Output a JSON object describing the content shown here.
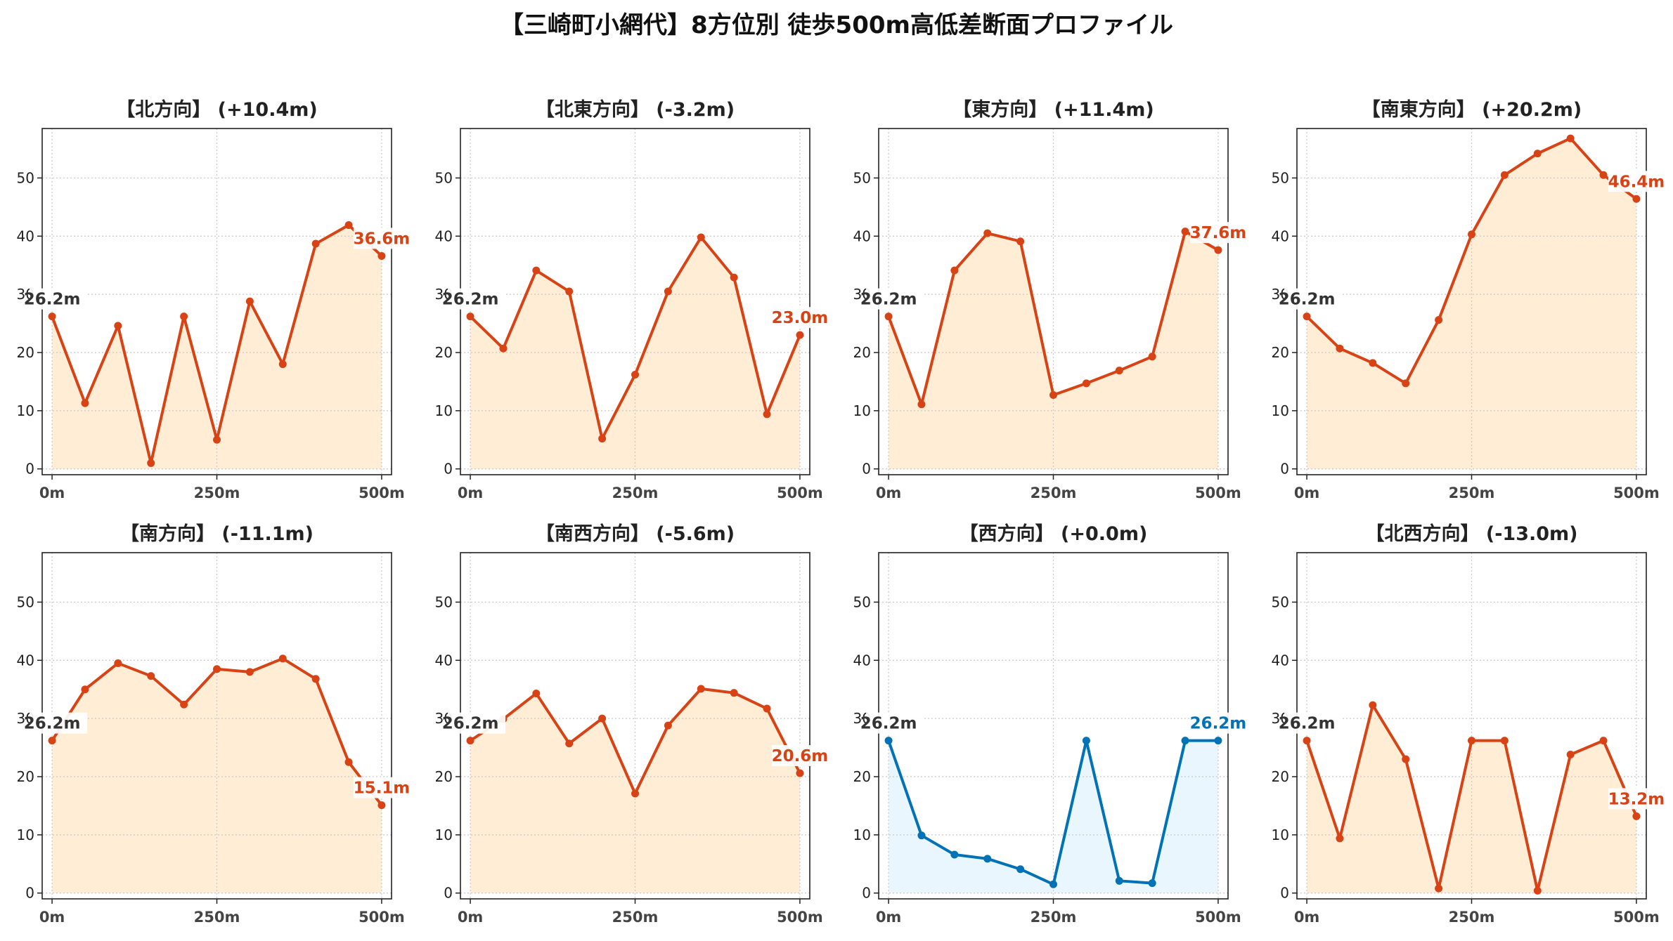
{
  "title": "【三崎町小網代】8方位別 徒歩500m高低差断面プロファイル",
  "colors": {
    "up_line": "#d84315",
    "up_fill": "#ffedd5",
    "flat_line": "#0072b5",
    "flat_fill": "#eaf6fd",
    "start_label": "#333333"
  },
  "chart_data": [
    {
      "type": "line",
      "title": "【北方向】 (+10.4m)",
      "style": "up",
      "x": [
        0,
        50,
        100,
        150,
        200,
        250,
        300,
        350,
        400,
        450,
        500
      ],
      "values": [
        26.2,
        11.3,
        24.6,
        1.0,
        26.2,
        5.0,
        28.8,
        18.0,
        38.7,
        41.9,
        36.6
      ],
      "start_label": "26.2m",
      "end_label": "36.6m",
      "x_ticks": [
        "0m",
        "250m",
        "500m"
      ],
      "y_ticks": [
        "0",
        "10",
        "20",
        "30",
        "40",
        "50"
      ],
      "ylim": [
        -1,
        58.5
      ],
      "xlim": [
        -15,
        515
      ],
      "grid": true
    },
    {
      "type": "line",
      "title": "【北東方向】 (-3.2m)",
      "style": "up",
      "x": [
        0,
        50,
        100,
        150,
        200,
        250,
        300,
        350,
        400,
        450,
        500
      ],
      "values": [
        26.2,
        20.7,
        34.1,
        30.5,
        5.2,
        16.2,
        30.5,
        39.8,
        32.9,
        9.4,
        23.0
      ],
      "start_label": "26.2m",
      "end_label": "23.0m",
      "x_ticks": [
        "0m",
        "250m",
        "500m"
      ],
      "y_ticks": [
        "0",
        "10",
        "20",
        "30",
        "40",
        "50"
      ],
      "ylim": [
        -1,
        58.5
      ],
      "xlim": [
        -15,
        515
      ],
      "grid": true
    },
    {
      "type": "line",
      "title": "【東方向】 (+11.4m)",
      "style": "up",
      "x": [
        0,
        50,
        100,
        150,
        200,
        250,
        300,
        350,
        400,
        450,
        500
      ],
      "values": [
        26.2,
        11.1,
        34.1,
        40.5,
        39.1,
        12.7,
        14.7,
        16.9,
        19.3,
        40.8,
        37.6
      ],
      "start_label": "26.2m",
      "end_label": "37.6m",
      "x_ticks": [
        "0m",
        "250m",
        "500m"
      ],
      "y_ticks": [
        "0",
        "10",
        "20",
        "30",
        "40",
        "50"
      ],
      "ylim": [
        -1,
        58.5
      ],
      "xlim": [
        -15,
        515
      ],
      "grid": true
    },
    {
      "type": "line",
      "title": "【南東方向】 (+20.2m)",
      "style": "up",
      "x": [
        0,
        50,
        100,
        150,
        200,
        250,
        300,
        350,
        400,
        450,
        500
      ],
      "values": [
        26.2,
        20.7,
        18.2,
        14.7,
        25.6,
        40.3,
        50.5,
        54.2,
        56.8,
        50.5,
        46.4
      ],
      "start_label": "26.2m",
      "end_label": "46.4m",
      "x_ticks": [
        "0m",
        "250m",
        "500m"
      ],
      "y_ticks": [
        "0",
        "10",
        "20",
        "30",
        "40",
        "50"
      ],
      "ylim": [
        -1,
        58.5
      ],
      "xlim": [
        -15,
        515
      ],
      "grid": true
    },
    {
      "type": "line",
      "title": "【南方向】 (-11.1m)",
      "style": "up",
      "x": [
        0,
        50,
        100,
        150,
        200,
        250,
        300,
        350,
        400,
        450,
        500
      ],
      "values": [
        26.2,
        35.0,
        39.5,
        37.3,
        32.4,
        38.5,
        38.0,
        40.3,
        36.8,
        22.5,
        15.1
      ],
      "start_label": "26.2m",
      "end_label": "15.1m",
      "x_ticks": [
        "0m",
        "250m",
        "500m"
      ],
      "y_ticks": [
        "0",
        "10",
        "20",
        "30",
        "40",
        "50"
      ],
      "ylim": [
        -1,
        58.5
      ],
      "xlim": [
        -15,
        515
      ],
      "grid": true
    },
    {
      "type": "line",
      "title": "【南西方向】 (-5.6m)",
      "style": "up",
      "x": [
        0,
        50,
        100,
        150,
        200,
        250,
        300,
        350,
        400,
        450,
        500
      ],
      "values": [
        26.2,
        29.9,
        34.3,
        25.7,
        30.0,
        17.1,
        28.8,
        35.1,
        34.4,
        31.7,
        20.6
      ],
      "start_label": "26.2m",
      "end_label": "20.6m",
      "x_ticks": [
        "0m",
        "250m",
        "500m"
      ],
      "y_ticks": [
        "0",
        "10",
        "20",
        "30",
        "40",
        "50"
      ],
      "ylim": [
        -1,
        58.5
      ],
      "xlim": [
        -15,
        515
      ],
      "grid": true
    },
    {
      "type": "line",
      "title": "【西方向】 (+0.0m)",
      "style": "flat",
      "x": [
        0,
        50,
        100,
        150,
        200,
        250,
        300,
        350,
        400,
        450,
        500
      ],
      "values": [
        26.2,
        9.9,
        6.6,
        5.9,
        4.1,
        1.5,
        26.2,
        2.1,
        1.7,
        26.2,
        26.2
      ],
      "start_label": "26.2m",
      "end_label": "26.2m",
      "x_ticks": [
        "0m",
        "250m",
        "500m"
      ],
      "y_ticks": [
        "0",
        "10",
        "20",
        "30",
        "40",
        "50"
      ],
      "ylim": [
        -1,
        58.5
      ],
      "xlim": [
        -15,
        515
      ],
      "grid": true
    },
    {
      "type": "line",
      "title": "【北西方向】 (-13.0m)",
      "style": "up",
      "x": [
        0,
        50,
        100,
        150,
        200,
        250,
        300,
        350,
        400,
        450,
        500
      ],
      "values": [
        26.2,
        9.4,
        32.3,
        23.0,
        0.8,
        26.2,
        26.2,
        0.4,
        23.8,
        26.2,
        13.2
      ],
      "start_label": "26.2m",
      "end_label": "13.2m",
      "x_ticks": [
        "0m",
        "250m",
        "500m"
      ],
      "y_ticks": [
        "0",
        "10",
        "20",
        "30",
        "40",
        "50"
      ],
      "ylim": [
        -1,
        58.5
      ],
      "xlim": [
        -15,
        515
      ],
      "grid": true
    }
  ]
}
